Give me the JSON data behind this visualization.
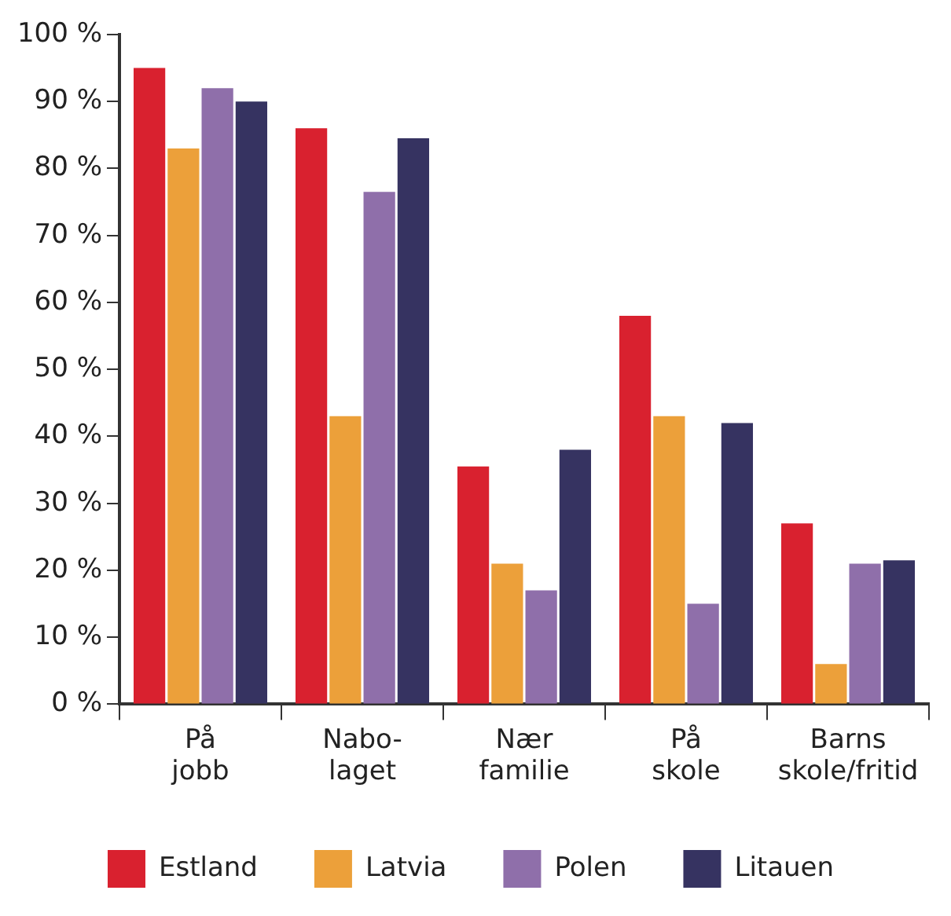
{
  "chart_data": {
    "type": "bar",
    "categories": [
      "På\njobb",
      "Nabo-\nlaget",
      "Nær\nfamilie",
      "På\nskole",
      "Barns\nskole/fritid"
    ],
    "series": [
      {
        "name": "Estland",
        "color": "#d9212f",
        "values": [
          95,
          86,
          35.5,
          58,
          27
        ]
      },
      {
        "name": "Latvia",
        "color": "#eca03a",
        "values": [
          83,
          43,
          21,
          43,
          6
        ]
      },
      {
        "name": "Polen",
        "color": "#8f6faa",
        "values": [
          92,
          76.5,
          17,
          15,
          21
        ]
      },
      {
        "name": "Litauen",
        "color": "#363361",
        "values": [
          90,
          84.5,
          38,
          42,
          21.5
        ]
      }
    ],
    "ylim": [
      0,
      100
    ],
    "yticks": [
      {
        "value": 0,
        "label": "0 %"
      },
      {
        "value": 10,
        "label": "10 %"
      },
      {
        "value": 20,
        "label": "20 %"
      },
      {
        "value": 30,
        "label": "30 %"
      },
      {
        "value": 40,
        "label": "40 %"
      },
      {
        "value": 50,
        "label": "50 %"
      },
      {
        "value": 60,
        "label": "60 %"
      },
      {
        "value": 70,
        "label": "70 %"
      },
      {
        "value": 80,
        "label": "80 %"
      },
      {
        "value": 90,
        "label": "90 %"
      },
      {
        "value": 100,
        "label": "100 %"
      }
    ],
    "grid": false,
    "legend": "bottom"
  }
}
